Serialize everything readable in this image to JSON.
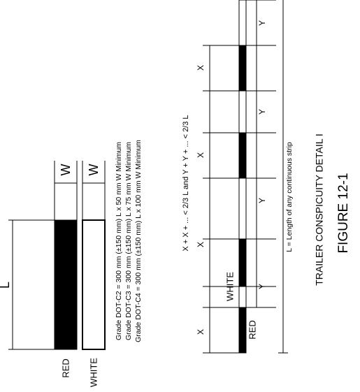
{
  "left_panel": {
    "length_label": "L",
    "width_labels": [
      "W",
      "W"
    ],
    "bar_labels": [
      "RED",
      "WHITE"
    ],
    "grades": [
      "Grade DOT-C2 = 300 mm (±150 mm) L x 50 mm W Minimum",
      "Grade DOT-C3 = 300 mm (±150 mm) L x 75 mm W Minimum",
      "Grade DOT-C4 = 300 mm (±150 mm) L x 100 mm W Minimum"
    ]
  },
  "strip": {
    "x_labels": [
      "X",
      "X",
      "X",
      "X"
    ],
    "y_labels": [
      "Y",
      "Y",
      "Y",
      "Y"
    ],
    "white_label": "WHITE",
    "red_label": "RED",
    "rule": "X + X + ... < 2/3 L and Y + Y + ... < 2/3 L",
    "length_note": "L = Length of any continuous strip"
  },
  "caption": {
    "title": "TRAILER CONSPICUITY DETAIL I",
    "figure": "FIGURE 12-1"
  }
}
